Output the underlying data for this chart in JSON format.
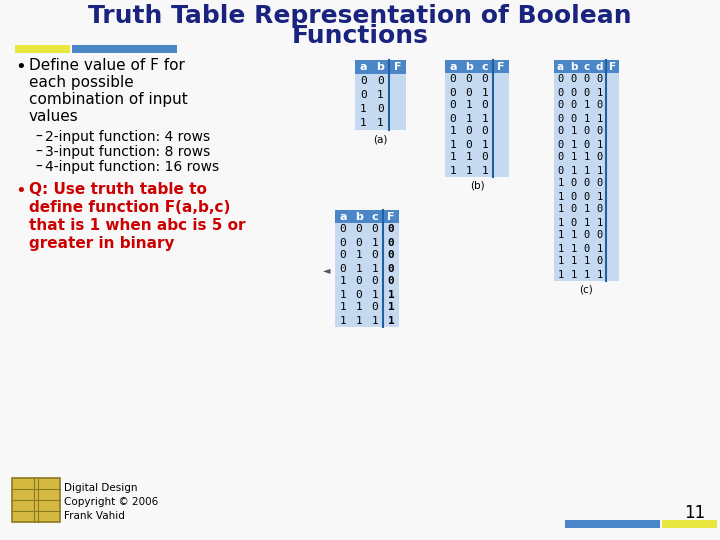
{
  "title_line1": "Truth Table Representation of Boolean",
  "title_line2": "Functions",
  "title_color": "#1a237e",
  "bg_color": "#f8f8f8",
  "bullet1_color": "#000000",
  "bullet1_lines": [
    "Define value of F for",
    "each possible",
    "combination of input",
    "values"
  ],
  "sub_bullets": [
    "2-input function: 4 rows",
    "3-input function: 8 rows",
    "4-input function: 16 rows"
  ],
  "bullet2_lines": [
    "Q: Use truth table to",
    "define function F(a,b,c)",
    "that is 1 when abc is 5 or",
    "greater in binary"
  ],
  "bullet2_color": "#cc0000",
  "table_header_bg": "#4a86c8",
  "table_body_bg": "#c5d9f1",
  "table_sep_color": "#2060a0",
  "footer_text": "Digital Design\nCopyright © 2006\nFrank Vahid",
  "page_number": "11",
  "bar_yellow": "#e8e840",
  "bar_blue": "#4a86c8",
  "icon_color": "#d4b840",
  "icon_edge": "#8a7a20",
  "table_a": {
    "headers": [
      "a",
      "b",
      "F"
    ],
    "rows": [
      [
        "0",
        "0",
        ""
      ],
      [
        "0",
        "1",
        ""
      ],
      [
        "1",
        "0",
        ""
      ],
      [
        "1",
        "1",
        ""
      ]
    ],
    "label": "(a)"
  },
  "table_b": {
    "headers": [
      "a",
      "b",
      "c",
      "F"
    ],
    "rows": [
      [
        "0",
        "0",
        "0",
        ""
      ],
      [
        "0",
        "0",
        "1",
        ""
      ],
      [
        "0",
        "1",
        "0",
        ""
      ],
      [
        "0",
        "1",
        "1",
        ""
      ],
      [
        "1",
        "0",
        "0",
        ""
      ],
      [
        "1",
        "0",
        "1",
        ""
      ],
      [
        "1",
        "1",
        "0",
        ""
      ],
      [
        "1",
        "1",
        "1",
        ""
      ]
    ],
    "label": "(b)"
  },
  "table_c": {
    "headers": [
      "a",
      "b",
      "c",
      "d",
      "F"
    ],
    "rows": [
      [
        "0",
        "0",
        "0",
        "0",
        ""
      ],
      [
        "0",
        "0",
        "0",
        "1",
        ""
      ],
      [
        "0",
        "0",
        "1",
        "0",
        ""
      ],
      [
        "0",
        "0",
        "1",
        "1",
        ""
      ],
      [
        "0",
        "1",
        "0",
        "0",
        ""
      ],
      [
        "0",
        "1",
        "0",
        "1",
        ""
      ],
      [
        "0",
        "1",
        "1",
        "0",
        ""
      ],
      [
        "0",
        "1",
        "1",
        "1",
        ""
      ],
      [
        "1",
        "0",
        "0",
        "0",
        ""
      ],
      [
        "1",
        "0",
        "0",
        "1",
        ""
      ],
      [
        "1",
        "0",
        "1",
        "0",
        ""
      ],
      [
        "1",
        "0",
        "1",
        "1",
        ""
      ],
      [
        "1",
        "1",
        "0",
        "0",
        ""
      ],
      [
        "1",
        "1",
        "0",
        "1",
        ""
      ],
      [
        "1",
        "1",
        "1",
        "0",
        ""
      ],
      [
        "1",
        "1",
        "1",
        "1",
        ""
      ]
    ],
    "label": "(c)"
  },
  "table_q": {
    "headers": [
      "a",
      "b",
      "c",
      "F"
    ],
    "rows": [
      [
        "0",
        "0",
        "0",
        "0"
      ],
      [
        "0",
        "0",
        "1",
        "0"
      ],
      [
        "0",
        "1",
        "0",
        "0"
      ],
      [
        "0",
        "1",
        "1",
        "0"
      ],
      [
        "1",
        "0",
        "0",
        "0"
      ],
      [
        "1",
        "0",
        "1",
        "1"
      ],
      [
        "1",
        "1",
        "0",
        "1"
      ],
      [
        "1",
        "1",
        "1",
        "1"
      ]
    ]
  }
}
